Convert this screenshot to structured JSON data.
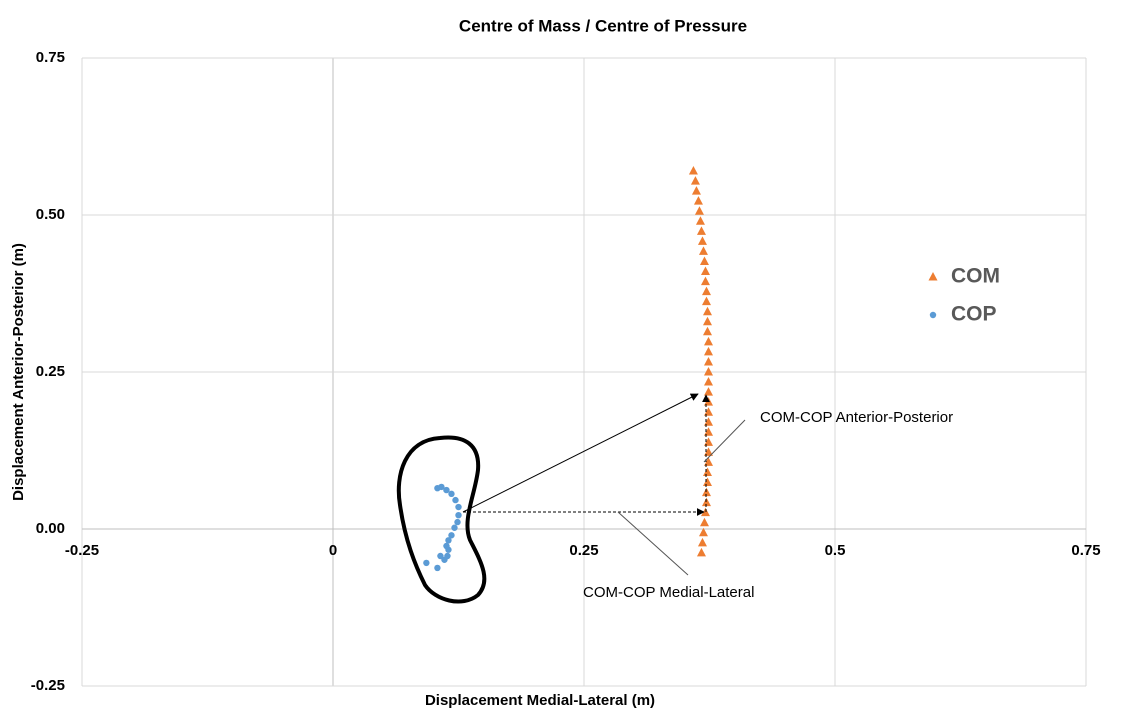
{
  "chart_data": {
    "type": "scatter",
    "title": "Centre of Mass / Centre of Pressure",
    "x_label": "Displacement Medial-Lateral (m)",
    "y_label": "Displacement Anterior-Posterior (m)",
    "xlim": [
      -0.25,
      0.75
    ],
    "xticks": [
      -0.25,
      0,
      0.25,
      0.5,
      0.75
    ],
    "ylim": [
      -0.25,
      0.75
    ],
    "yticks": [
      {
        "value": 0.75,
        "label": "0.75"
      },
      {
        "value": 0.5,
        "label": "0.50"
      },
      {
        "value": 0.25,
        "label": "0.25"
      },
      {
        "value": 0,
        "label": "0.00"
      },
      {
        "value": -0.25,
        "label": "-0.25"
      }
    ],
    "grid": true,
    "legend": "right",
    "series": [
      {
        "name": "COM",
        "color": "#ED7D31",
        "marker": "triangle",
        "x": [
          0.359,
          0.361,
          0.362,
          0.364,
          0.365,
          0.366,
          0.367,
          0.368,
          0.369,
          0.37,
          0.371,
          0.371,
          0.372,
          0.372,
          0.373,
          0.373,
          0.373,
          0.374,
          0.374,
          0.374,
          0.374,
          0.374,
          0.374,
          0.374,
          0.374,
          0.374,
          0.374,
          0.374,
          0.374,
          0.374,
          0.373,
          0.373,
          0.372,
          0.372,
          0.371,
          0.37,
          0.369,
          0.368,
          0.367
        ],
        "values": [
          0.57,
          0.554,
          0.538,
          0.522,
          0.506,
          0.49,
          0.474,
          0.458,
          0.442,
          0.426,
          0.41,
          0.394,
          0.378,
          0.362,
          0.346,
          0.33,
          0.314,
          0.298,
          0.282,
          0.266,
          0.25,
          0.234,
          0.218,
          0.202,
          0.186,
          0.17,
          0.154,
          0.138,
          0.122,
          0.106,
          0.09,
          0.074,
          0.058,
          0.042,
          0.026,
          0.01,
          -0.006,
          -0.022,
          -0.038
        ]
      },
      {
        "name": "COP",
        "color": "#5B9BD5",
        "marker": "circle",
        "x": [
          0.104,
          0.108,
          0.113,
          0.118,
          0.122,
          0.125,
          0.125,
          0.124,
          0.121,
          0.118,
          0.115,
          0.113,
          0.115,
          0.114,
          0.111,
          0.107,
          0.093,
          0.104
        ],
        "values": [
          0.065,
          0.067,
          0.062,
          0.056,
          0.046,
          0.035,
          0.022,
          0.011,
          0.002,
          -0.01,
          -0.018,
          -0.027,
          -0.033,
          -0.043,
          -0.049,
          -0.043,
          -0.054,
          -0.062
        ]
      }
    ],
    "annotations": [
      "COM-COP Anterior-Posterior",
      "COM-COP Medial-Lateral"
    ]
  }
}
